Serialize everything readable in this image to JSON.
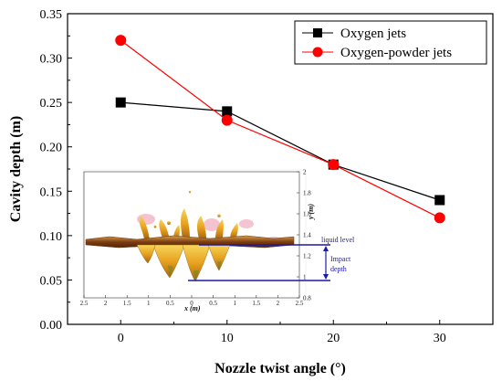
{
  "chart_data": {
    "type": "line",
    "xlabel": "Nozzle twist angle (°)",
    "ylabel": "Cavity depth (m)",
    "xlim": [
      -5,
      35
    ],
    "ylim": [
      0,
      0.35
    ],
    "x_ticks": [
      0,
      10,
      20,
      30
    ],
    "x_tick_labels": [
      "0",
      "10",
      "20",
      "30"
    ],
    "y_ticks": [
      0,
      0.05,
      0.1,
      0.15,
      0.2,
      0.25,
      0.3,
      0.35
    ],
    "y_tick_labels": [
      "0.00",
      "0.05",
      "0.10",
      "0.15",
      "0.20",
      "0.25",
      "0.30",
      "0.35"
    ],
    "grid": false,
    "legend_position": "top-right",
    "series": [
      {
        "name": "Oxygen jets",
        "x": [
          0,
          10,
          20,
          30
        ],
        "values": [
          0.25,
          0.24,
          0.18,
          0.14
        ],
        "color": "#000000",
        "marker": "square"
      },
      {
        "name": "Oxygen-powder jets",
        "x": [
          0,
          10,
          20,
          30
        ],
        "values": [
          0.32,
          0.23,
          0.18,
          0.12
        ],
        "color": "#ff0000",
        "marker": "circle"
      }
    ],
    "inset": {
      "x_label": "x (m)",
      "y_label": "y (m)",
      "x_tick_labels": [
        "2.5",
        "2",
        "1.5",
        "1",
        "0.5",
        "0",
        "0.5",
        "1",
        "1.5",
        "2",
        "2.5"
      ],
      "y_tick_labels": [
        "2",
        "1.8",
        "1.6",
        "1.4",
        "1.2",
        "1",
        "0.8"
      ],
      "annotations": [
        "liquid level",
        "Impact",
        "depth"
      ]
    }
  }
}
